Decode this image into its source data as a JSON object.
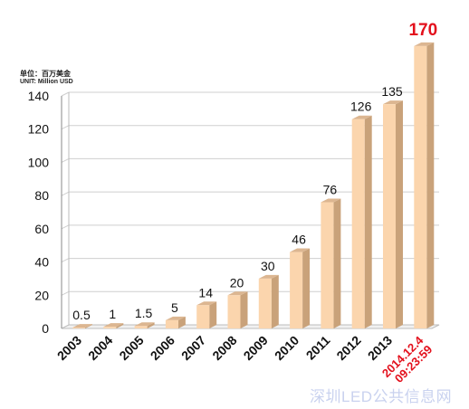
{
  "units": {
    "cn": "单位：百万美金",
    "en": "UNIT: Million USD"
  },
  "watermark": "深圳LED公共信息网",
  "chart_data": {
    "type": "bar",
    "categories": [
      "2003",
      "2004",
      "2005",
      "2006",
      "2007",
      "2008",
      "2009",
      "2010",
      "2011",
      "2012",
      "2013",
      "2014.12.4 09:23:59"
    ],
    "values": [
      0.5,
      1,
      1.5,
      5,
      14,
      20,
      30,
      46,
      76,
      126,
      135,
      170
    ],
    "data_labels": [
      "0.5",
      "1",
      "1.5",
      "5",
      "14",
      "20",
      "30",
      "46",
      "76",
      "126",
      "135",
      "170"
    ],
    "ylim": [
      0,
      140
    ],
    "yticks": [
      0,
      20,
      40,
      60,
      80,
      100,
      120,
      140
    ],
    "grid": true,
    "colors": {
      "bar_front": "#fbd5ad",
      "bar_side": "#c9a27a",
      "bar_top": "#dcb691",
      "highlight": "#e3101c",
      "grid": "#cfcfcf"
    }
  }
}
